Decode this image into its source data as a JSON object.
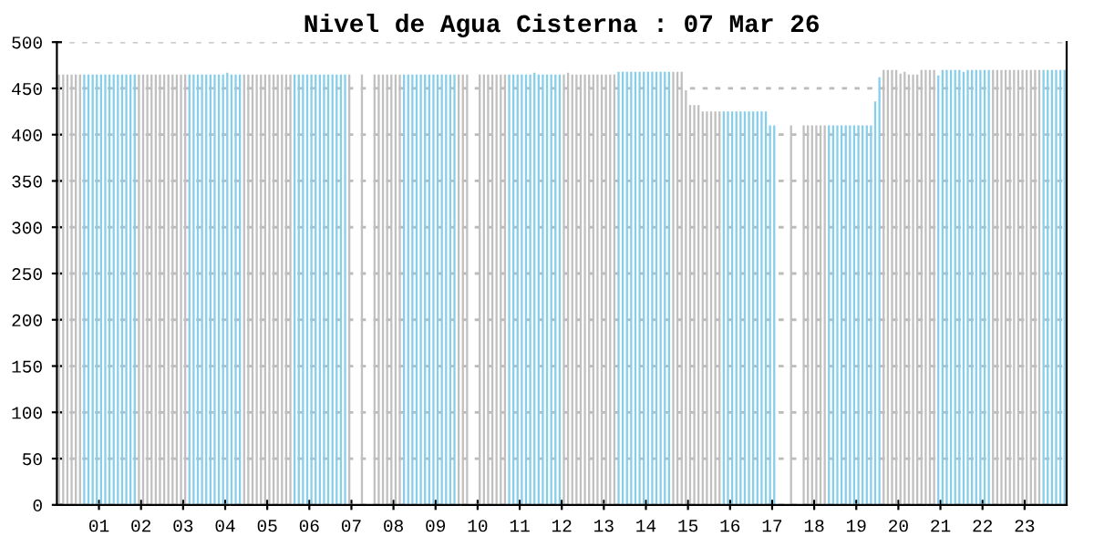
{
  "chart_data": {
    "type": "bar",
    "title": "Nivel de Agua Cisterna : 07 Mar 26",
    "x": [
      0.05,
      0.15,
      0.25,
      0.35,
      0.45,
      0.55,
      0.65,
      0.75,
      0.85,
      0.95,
      1.05,
      1.15,
      1.25,
      1.35,
      1.45,
      1.55,
      1.65,
      1.75,
      1.85,
      1.95,
      2.05,
      2.15,
      2.25,
      2.35,
      2.45,
      2.55,
      2.65,
      2.75,
      2.85,
      2.95,
      3.05,
      3.15,
      3.25,
      3.35,
      3.45,
      3.55,
      3.65,
      3.75,
      3.85,
      3.95,
      4.05,
      4.15,
      4.25,
      4.35,
      4.45,
      4.55,
      4.65,
      4.75,
      4.85,
      4.95,
      5.05,
      5.15,
      5.25,
      5.35,
      5.45,
      5.55,
      5.65,
      5.75,
      5.85,
      5.95,
      6.05,
      6.15,
      6.25,
      6.35,
      6.45,
      6.55,
      6.65,
      6.75,
      6.85,
      6.95,
      7.05,
      7.15,
      7.25,
      7.35,
      7.45,
      7.55,
      7.65,
      7.75,
      7.85,
      7.95,
      8.05,
      8.15,
      8.25,
      8.35,
      8.45,
      8.55,
      8.65,
      8.75,
      8.85,
      8.95,
      9.05,
      9.15,
      9.25,
      9.35,
      9.45,
      9.55,
      9.65,
      9.75,
      9.85,
      9.95,
      10.05,
      10.15,
      10.25,
      10.35,
      10.45,
      10.55,
      10.65,
      10.75,
      10.85,
      10.95,
      11.05,
      11.15,
      11.25,
      11.35,
      11.45,
      11.55,
      11.65,
      11.75,
      11.85,
      11.95,
      12.05,
      12.15,
      12.25,
      12.35,
      12.45,
      12.55,
      12.65,
      12.75,
      12.85,
      12.95,
      13.05,
      13.15,
      13.25,
      13.35,
      13.45,
      13.55,
      13.65,
      13.75,
      13.85,
      13.95,
      14.05,
      14.15,
      14.25,
      14.35,
      14.45,
      14.55,
      14.65,
      14.75,
      14.85,
      14.95,
      15.05,
      15.15,
      15.25,
      15.35,
      15.45,
      15.55,
      15.65,
      15.75,
      15.85,
      15.95,
      16.05,
      16.15,
      16.25,
      16.35,
      16.45,
      16.55,
      16.65,
      16.75,
      16.85,
      16.95,
      17.05,
      17.15,
      17.25,
      17.35,
      17.45,
      17.55,
      17.65,
      17.75,
      17.85,
      17.95,
      18.05,
      18.15,
      18.25,
      18.35,
      18.45,
      18.55,
      18.65,
      18.75,
      18.85,
      18.95,
      19.05,
      19.15,
      19.25,
      19.35,
      19.45,
      19.55,
      19.65,
      19.75,
      19.85,
      19.95,
      20.05,
      20.15,
      20.25,
      20.35,
      20.45,
      20.55,
      20.65,
      20.75,
      20.85,
      20.95,
      21.05,
      21.15,
      21.25,
      21.35,
      21.45,
      21.55,
      21.65,
      21.75,
      21.85,
      21.95,
      22.05,
      22.15,
      22.25,
      22.35,
      22.45,
      22.55,
      22.65,
      22.75,
      22.85,
      22.95,
      23.05,
      23.15,
      23.25,
      23.35,
      23.45,
      23.55,
      23.65,
      23.75,
      23.85,
      23.95
    ],
    "values": [
      465,
      465,
      465,
      465,
      465,
      465,
      465,
      465,
      465,
      465,
      465,
      465,
      465,
      465,
      465,
      465,
      465,
      465,
      465,
      465,
      465,
      465,
      465,
      465,
      465,
      465,
      465,
      465,
      465,
      465,
      465,
      465,
      465,
      465,
      465,
      465,
      465,
      465,
      465,
      465,
      467,
      465,
      465,
      465,
      465,
      465,
      465,
      465,
      465,
      465,
      465,
      465,
      465,
      465,
      465,
      465,
      465,
      465,
      465,
      465,
      465,
      465,
      465,
      465,
      465,
      465,
      465,
      465,
      465,
      465,
      null,
      null,
      465,
      null,
      null,
      465,
      465,
      465,
      465,
      465,
      465,
      465,
      465,
      465,
      465,
      465,
      465,
      465,
      465,
      465,
      465,
      465,
      465,
      465,
      465,
      465,
      465,
      465,
      null,
      null,
      465,
      465,
      465,
      465,
      465,
      465,
      465,
      465,
      465,
      465,
      465,
      465,
      465,
      467,
      465,
      465,
      465,
      465,
      465,
      465,
      465,
      467,
      465,
      465,
      465,
      465,
      465,
      465,
      465,
      465,
      465,
      465,
      465,
      468,
      468,
      468,
      468,
      468,
      468,
      468,
      468,
      468,
      468,
      468,
      468,
      468,
      468,
      468,
      468,
      448,
      432,
      432,
      432,
      425,
      425,
      425,
      425,
      425,
      425,
      425,
      425,
      425,
      425,
      425,
      425,
      425,
      425,
      425,
      425,
      410,
      410,
      null,
      null,
      null,
      410,
      null,
      null,
      410,
      410,
      410,
      410,
      410,
      410,
      410,
      410,
      410,
      410,
      410,
      410,
      410,
      410,
      410,
      410,
      410,
      436,
      462,
      470,
      470,
      470,
      470,
      466,
      468,
      465,
      465,
      465,
      470,
      470,
      470,
      470,
      464,
      470,
      470,
      470,
      470,
      470,
      468,
      470,
      470,
      470,
      470,
      470,
      470,
      470,
      470,
      470,
      470,
      470,
      470,
      470,
      470,
      470,
      470,
      470,
      470,
      470,
      470,
      470,
      470,
      470,
      470
    ],
    "colors": [
      "#c0c0c0",
      "#c0c0c0",
      "#c0c0c0",
      "#c0c0c0",
      "#c0c0c0",
      "#c0c0c0",
      "#87ceeb",
      "#87ceeb",
      "#87ceeb",
      "#87ceeb",
      "#87ceeb",
      "#87ceeb",
      "#87ceeb",
      "#87ceeb",
      "#87ceeb",
      "#87ceeb",
      "#87ceeb",
      "#87ceeb",
      "#87ceeb",
      "#c0c0c0",
      "#c0c0c0",
      "#c0c0c0",
      "#c0c0c0",
      "#c0c0c0",
      "#c0c0c0",
      "#c0c0c0",
      "#c0c0c0",
      "#c0c0c0",
      "#c0c0c0",
      "#c0c0c0",
      "#c0c0c0",
      "#87ceeb",
      "#87ceeb",
      "#87ceeb",
      "#87ceeb",
      "#87ceeb",
      "#87ceeb",
      "#87ceeb",
      "#87ceeb",
      "#87ceeb",
      "#87ceeb",
      "#87ceeb",
      "#87ceeb",
      "#87ceeb",
      "#c0c0c0",
      "#c0c0c0",
      "#c0c0c0",
      "#c0c0c0",
      "#c0c0c0",
      "#c0c0c0",
      "#c0c0c0",
      "#c0c0c0",
      "#c0c0c0",
      "#c0c0c0",
      "#c0c0c0",
      "#c0c0c0",
      "#87ceeb",
      "#87ceeb",
      "#87ceeb",
      "#87ceeb",
      "#87ceeb",
      "#87ceeb",
      "#87ceeb",
      "#87ceeb",
      "#87ceeb",
      "#87ceeb",
      "#87ceeb",
      "#87ceeb",
      "#87ceeb",
      "#c0c0c0",
      "#c0c0c0",
      "#c0c0c0",
      "#c0c0c0",
      "#c0c0c0",
      "#c0c0c0",
      "#c0c0c0",
      "#c0c0c0",
      "#c0c0c0",
      "#c0c0c0",
      "#c0c0c0",
      "#c0c0c0",
      "#c0c0c0",
      "#87ceeb",
      "#87ceeb",
      "#87ceeb",
      "#87ceeb",
      "#87ceeb",
      "#87ceeb",
      "#87ceeb",
      "#87ceeb",
      "#87ceeb",
      "#87ceeb",
      "#87ceeb",
      "#87ceeb",
      "#87ceeb",
      "#c0c0c0",
      "#c0c0c0",
      "#c0c0c0",
      "#c0c0c0",
      "#c0c0c0",
      "#c0c0c0",
      "#c0c0c0",
      "#c0c0c0",
      "#c0c0c0",
      "#c0c0c0",
      "#c0c0c0",
      "#c0c0c0",
      "#87ceeb",
      "#87ceeb",
      "#87ceeb",
      "#87ceeb",
      "#87ceeb",
      "#87ceeb",
      "#87ceeb",
      "#87ceeb",
      "#87ceeb",
      "#87ceeb",
      "#87ceeb",
      "#87ceeb",
      "#87ceeb",
      "#c0c0c0",
      "#c0c0c0",
      "#c0c0c0",
      "#c0c0c0",
      "#c0c0c0",
      "#c0c0c0",
      "#c0c0c0",
      "#c0c0c0",
      "#c0c0c0",
      "#c0c0c0",
      "#c0c0c0",
      "#c0c0c0",
      "#c0c0c0",
      "#87ceeb",
      "#87ceeb",
      "#87ceeb",
      "#87ceeb",
      "#87ceeb",
      "#87ceeb",
      "#87ceeb",
      "#87ceeb",
      "#87ceeb",
      "#87ceeb",
      "#87ceeb",
      "#87ceeb",
      "#87ceeb",
      "#c0c0c0",
      "#c0c0c0",
      "#c0c0c0",
      "#c0c0c0",
      "#c0c0c0",
      "#c0c0c0",
      "#c0c0c0",
      "#c0c0c0",
      "#c0c0c0",
      "#c0c0c0",
      "#c0c0c0",
      "#c0c0c0",
      "#87ceeb",
      "#87ceeb",
      "#87ceeb",
      "#87ceeb",
      "#87ceeb",
      "#87ceeb",
      "#87ceeb",
      "#87ceeb",
      "#87ceeb",
      "#87ceeb",
      "#87ceeb",
      "#87ceeb",
      "#87ceeb",
      "#c0c0c0",
      "#c0c0c0",
      "#c0c0c0",
      "#c0c0c0",
      "#c0c0c0",
      "#c0c0c0",
      "#c0c0c0",
      "#c0c0c0",
      "#c0c0c0",
      "#c0c0c0",
      "#c0c0c0",
      "#c0c0c0",
      "#87ceeb",
      "#87ceeb",
      "#87ceeb",
      "#87ceeb",
      "#87ceeb",
      "#87ceeb",
      "#87ceeb",
      "#87ceeb",
      "#87ceeb",
      "#87ceeb",
      "#87ceeb",
      "#87ceeb",
      "#87ceeb",
      "#c0c0c0",
      "#c0c0c0",
      "#c0c0c0",
      "#c0c0c0",
      "#c0c0c0",
      "#c0c0c0",
      "#c0c0c0",
      "#c0c0c0",
      "#c0c0c0",
      "#c0c0c0",
      "#c0c0c0",
      "#c0c0c0",
      "#c0c0c0",
      "#87ceeb",
      "#87ceeb",
      "#87ceeb",
      "#87ceeb",
      "#87ceeb",
      "#87ceeb",
      "#87ceeb",
      "#87ceeb",
      "#87ceeb",
      "#87ceeb",
      "#87ceeb",
      "#87ceeb",
      "#87ceeb",
      "#c0c0c0",
      "#c0c0c0",
      "#c0c0c0",
      "#c0c0c0",
      "#c0c0c0",
      "#c0c0c0",
      "#c0c0c0",
      "#c0c0c0",
      "#c0c0c0",
      "#c0c0c0",
      "#c0c0c0",
      "#c0c0c0",
      "#87ceeb",
      "#87ceeb",
      "#87ceeb",
      "#87ceeb",
      "#87ceeb",
      "#87ceeb"
    ],
    "xlim": [
      0,
      24
    ],
    "xticks": [
      {
        "value": 1,
        "label": "01"
      },
      {
        "value": 2,
        "label": "02"
      },
      {
        "value": 3,
        "label": "03"
      },
      {
        "value": 4,
        "label": "04"
      },
      {
        "value": 5,
        "label": "05"
      },
      {
        "value": 6,
        "label": "06"
      },
      {
        "value": 7,
        "label": "07"
      },
      {
        "value": 8,
        "label": "08"
      },
      {
        "value": 9,
        "label": "09"
      },
      10,
      11,
      12,
      13,
      14,
      15,
      16,
      17,
      18,
      19,
      20,
      21,
      22,
      23
    ],
    "ylim": [
      0,
      500
    ],
    "yticks": [
      0,
      50,
      100,
      150,
      200,
      250,
      300,
      350,
      400,
      450,
      500
    ],
    "grid": "y",
    "legend": false
  }
}
